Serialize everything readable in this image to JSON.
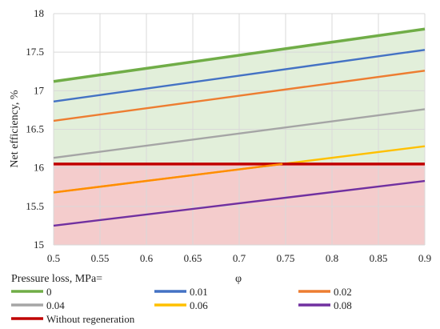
{
  "chart_data": {
    "type": "line",
    "title": "",
    "xlabel": "φ",
    "ylabel": "Net efficiency, %",
    "xlim": [
      0.5,
      0.9
    ],
    "ylim": [
      15,
      18
    ],
    "x_ticks": [
      "0.5",
      "0.55",
      "0.6",
      "0.65",
      "0.7",
      "0.75",
      "0.8",
      "0.85",
      "0.9"
    ],
    "y_ticks": [
      "15",
      "15.5",
      "16",
      "16.5",
      "17",
      "17.5",
      "18"
    ],
    "grid": true,
    "legend_title": "Pressure loss, MPa=",
    "legend_position": "bottom",
    "x": [
      0.5,
      0.9
    ],
    "series": [
      {
        "name": "0",
        "values": [
          17.12,
          17.8
        ],
        "color": "#70ad47"
      },
      {
        "name": "0.01",
        "values": [
          16.86,
          17.53
        ],
        "color": "#4472c4"
      },
      {
        "name": "0.02",
        "values": [
          16.61,
          17.26
        ],
        "color": "#ed7d31"
      },
      {
        "name": "0.04",
        "values": [
          16.13,
          16.76
        ],
        "color": "#a5a5a5"
      },
      {
        "name": "0.06",
        "values": [
          15.68,
          16.28
        ],
        "color": "#ffc000"
      },
      {
        "name": "0.08",
        "values": [
          15.25,
          15.83
        ],
        "color": "#7030a0"
      },
      {
        "name": "Without regeneration",
        "values": [
          16.05,
          16.05
        ],
        "color": "#c00000"
      }
    ],
    "shading": {
      "above_baseline_color": "#e2efda",
      "below_baseline_color": "#f4cccc",
      "baseline": 16.05
    },
    "intersection_color": "#ff8c00"
  }
}
